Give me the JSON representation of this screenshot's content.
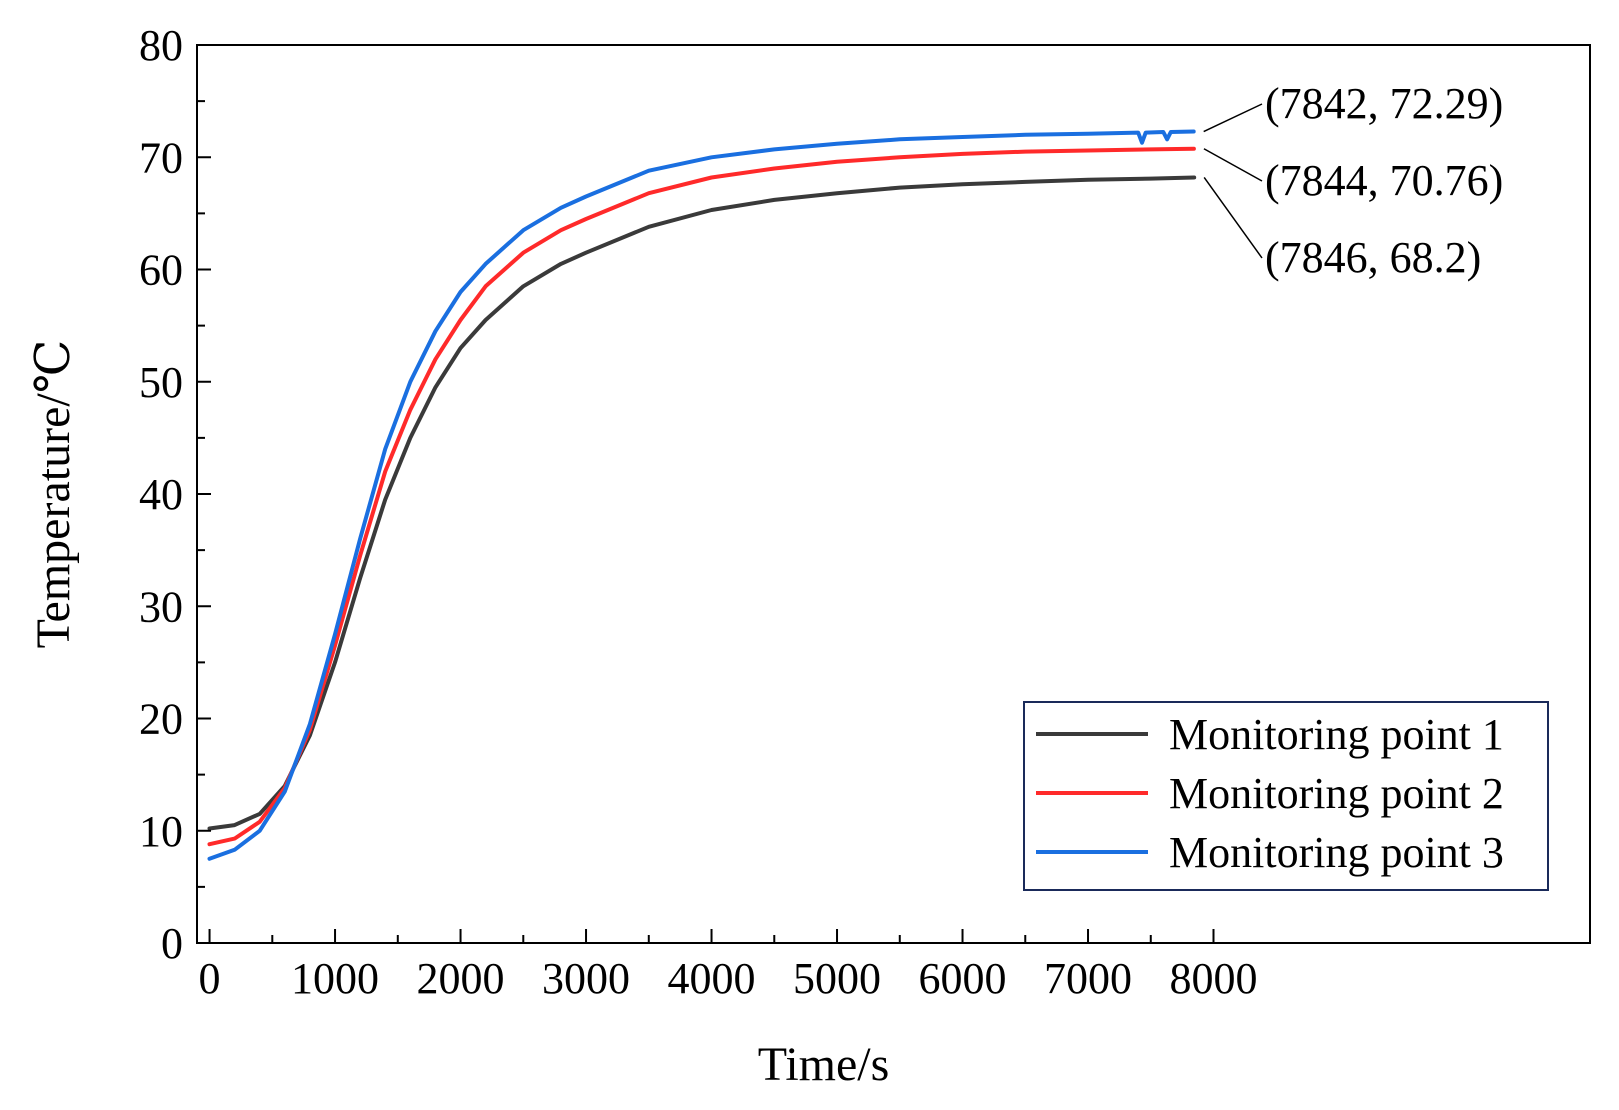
{
  "chart_data": {
    "type": "line",
    "title": "",
    "xlabel": "Time/s",
    "ylabel": "Temperature/℃",
    "xlim": [
      -100,
      11000
    ],
    "ylim": [
      0,
      80
    ],
    "xticks": [
      0,
      1000,
      2000,
      3000,
      4000,
      5000,
      6000,
      7000,
      8000
    ],
    "yticks": [
      0,
      10,
      20,
      30,
      40,
      50,
      60,
      70,
      80
    ],
    "legend_position": "bottom-right",
    "series": [
      {
        "name": "Monitoring point 1",
        "color": "#3a3a3a",
        "x": [
          0,
          200,
          400,
          600,
          800,
          1000,
          1200,
          1400,
          1600,
          1800,
          2000,
          2200,
          2500,
          2800,
          3000,
          3500,
          4000,
          4500,
          5000,
          5500,
          6000,
          6500,
          7000,
          7500,
          7846
        ],
        "y": [
          10.2,
          10.5,
          11.5,
          14.0,
          18.5,
          25.0,
          32.5,
          39.5,
          45.0,
          49.5,
          53.0,
          55.5,
          58.5,
          60.5,
          61.5,
          63.8,
          65.3,
          66.2,
          66.8,
          67.3,
          67.6,
          67.8,
          68.0,
          68.1,
          68.2
        ]
      },
      {
        "name": "Monitoring point 2",
        "color": "#ff2a2a",
        "x": [
          0,
          200,
          400,
          600,
          800,
          1000,
          1200,
          1400,
          1600,
          1800,
          2000,
          2200,
          2500,
          2800,
          3000,
          3500,
          4000,
          4500,
          5000,
          5500,
          6000,
          6500,
          7000,
          7500,
          7844
        ],
        "y": [
          8.8,
          9.3,
          10.8,
          13.8,
          19.0,
          26.5,
          34.5,
          42.0,
          47.5,
          52.0,
          55.5,
          58.5,
          61.5,
          63.5,
          64.5,
          66.8,
          68.2,
          69.0,
          69.6,
          70.0,
          70.3,
          70.5,
          70.6,
          70.7,
          70.76
        ]
      },
      {
        "name": "Monitoring point 3",
        "color": "#1a6fe0",
        "x": [
          0,
          200,
          400,
          600,
          800,
          1000,
          1200,
          1400,
          1600,
          1800,
          2000,
          2200,
          2500,
          2800,
          3000,
          3500,
          4000,
          4500,
          5000,
          5500,
          6000,
          6500,
          7000,
          7400,
          7430,
          7460,
          7600,
          7630,
          7660,
          7842
        ],
        "y": [
          7.5,
          8.3,
          10.0,
          13.5,
          19.5,
          27.5,
          36.0,
          44.0,
          50.0,
          54.5,
          58.0,
          60.5,
          63.5,
          65.5,
          66.5,
          68.8,
          70.0,
          70.7,
          71.2,
          71.6,
          71.8,
          72.0,
          72.1,
          72.2,
          71.3,
          72.2,
          72.25,
          71.6,
          72.25,
          72.29
        ]
      }
    ],
    "annotations": [
      {
        "text": "(7842, 72.29)",
        "x": 7842,
        "y": 72.29
      },
      {
        "text": "(7844, 70.76)",
        "x": 7844,
        "y": 70.76
      },
      {
        "text": "(7846, 68.2)",
        "x": 7846,
        "y": 68.2
      }
    ]
  }
}
